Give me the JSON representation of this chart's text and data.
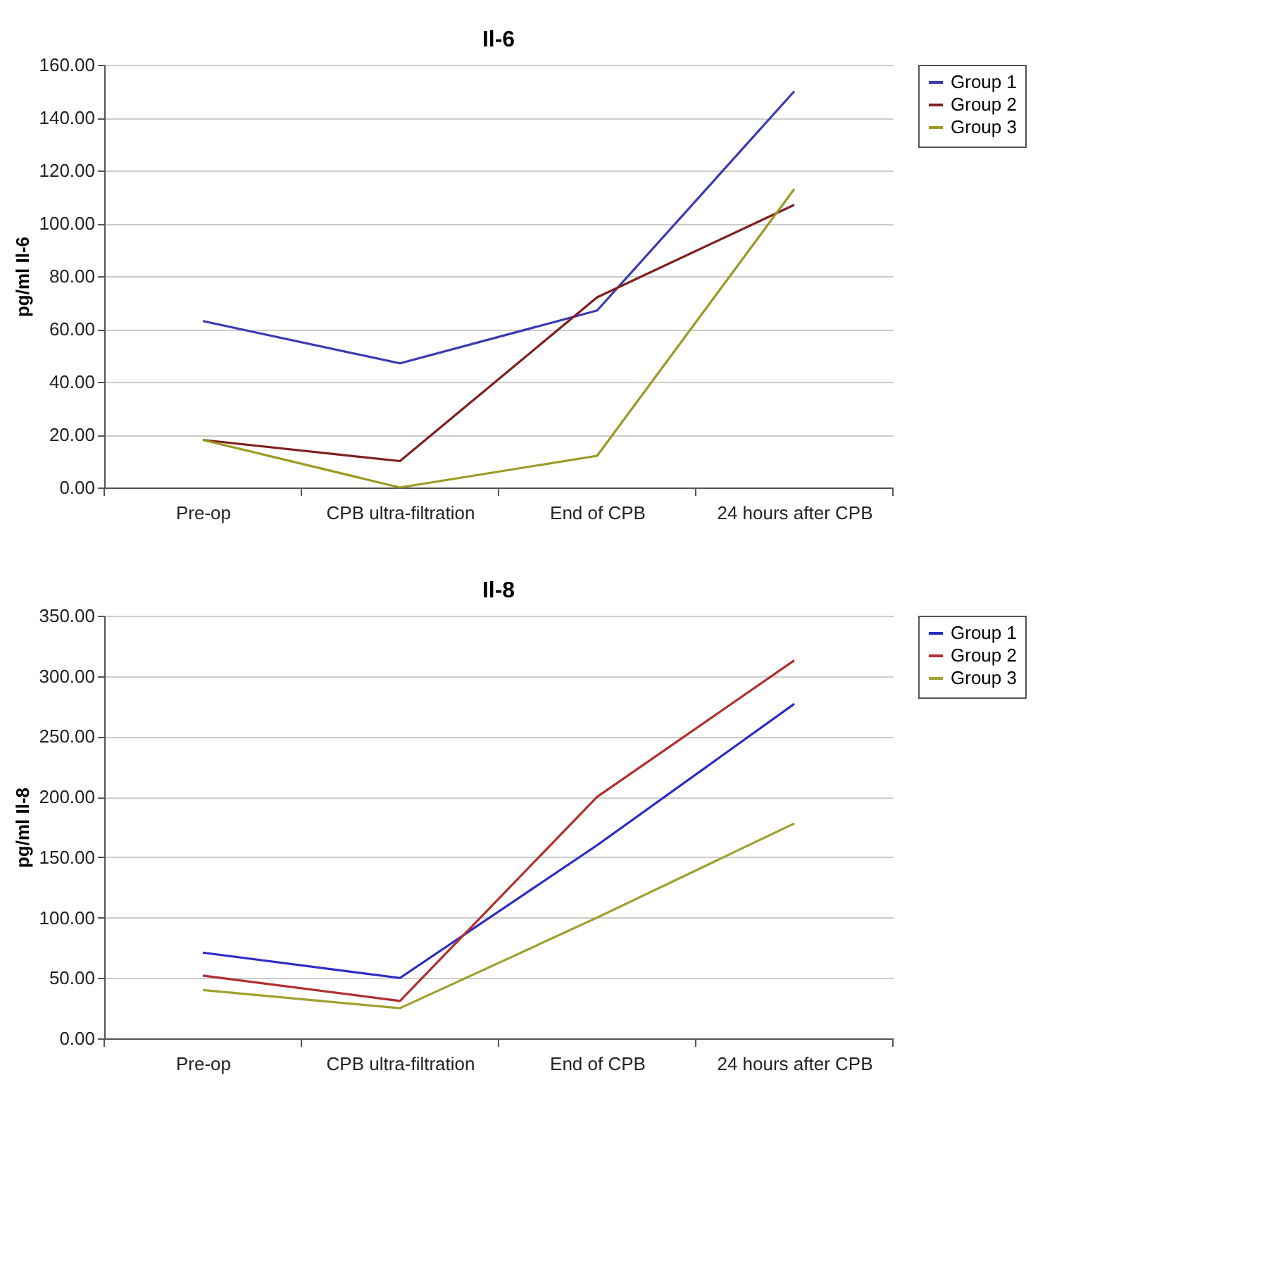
{
  "chart_data": [
    {
      "type": "line",
      "title": "Il-6",
      "ylabel": "pg/ml Il-6",
      "categories": [
        "Pre-op",
        "CPB ultra-filtration",
        "End of CPB",
        "24 hours after CPB"
      ],
      "series": [
        {
          "name": "Group 1",
          "color": "#3b3bb0",
          "values": [
            63,
            47,
            67,
            150
          ]
        },
        {
          "name": "Group 2",
          "color": "#7f1f1f",
          "values": [
            18,
            10,
            72,
            107
          ]
        },
        {
          "name": "Group 3",
          "color": "#9a9a22",
          "values": [
            18,
            0,
            12,
            113
          ]
        }
      ],
      "ylim": [
        0,
        160
      ],
      "yticks": [
        {
          "value": 0,
          "label": "0.00"
        },
        {
          "value": 20,
          "label": "20.00"
        },
        {
          "value": 40,
          "label": "40.00"
        },
        {
          "value": 60,
          "label": "60.00"
        },
        {
          "value": 80,
          "label": "80.00"
        },
        {
          "value": 100,
          "label": "100.00"
        },
        {
          "value": 120,
          "label": "120.00"
        },
        {
          "value": 140,
          "label": "140.00"
        },
        {
          "value": 160,
          "label": "160.00"
        }
      ],
      "grid": "y",
      "legend": "right",
      "marker": "none"
    },
    {
      "type": "line",
      "title": "Il-8",
      "ylabel": "pg/ml Il-8",
      "categories": [
        "Pre-op",
        "CPB ultra-filtration",
        "End of CPB",
        "24 hours after CPB"
      ],
      "series": [
        {
          "name": "Group 1",
          "color": "#2b2bc4",
          "values": [
            71,
            50,
            160,
            277
          ]
        },
        {
          "name": "Group 2",
          "color": "#b03030",
          "values": [
            52,
            31,
            200,
            313
          ]
        },
        {
          "name": "Group 3",
          "color": "#a0a030",
          "values": [
            40,
            25,
            100,
            178
          ]
        }
      ],
      "ylim": [
        0,
        350
      ],
      "yticks": [
        {
          "value": 0,
          "label": "0.00"
        },
        {
          "value": 50,
          "label": "50.00"
        },
        {
          "value": 100,
          "label": "100.00"
        },
        {
          "value": 150,
          "label": "150.00"
        },
        {
          "value": 200,
          "label": "200.00"
        },
        {
          "value": 250,
          "label": "250.00"
        },
        {
          "value": 300,
          "label": "300.00"
        },
        {
          "value": 350,
          "label": "350.00"
        }
      ],
      "grid": "y",
      "legend": "right",
      "marker": "none"
    }
  ]
}
